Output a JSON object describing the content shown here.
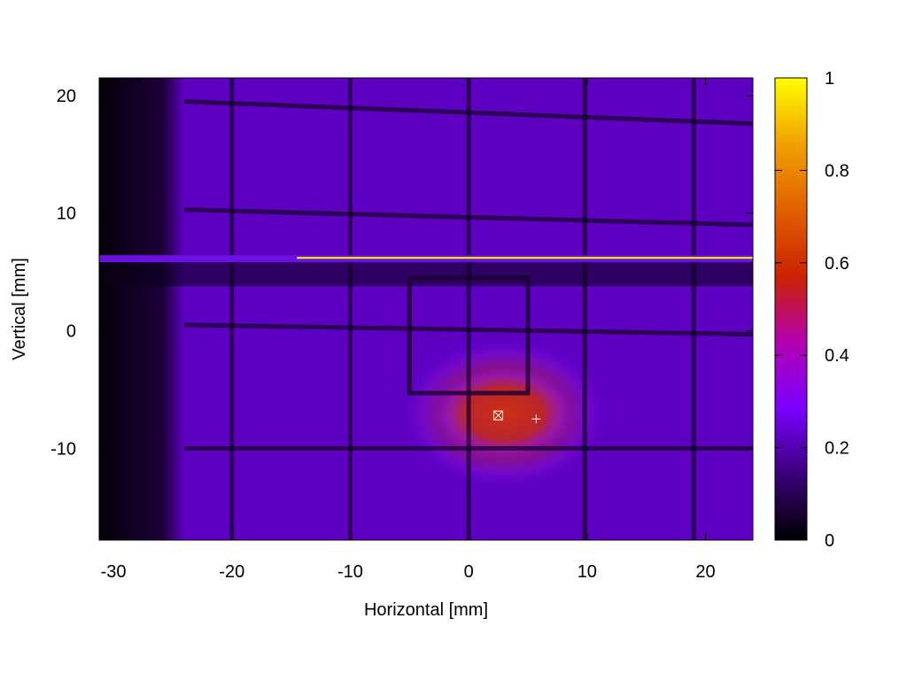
{
  "chart_data": {
    "type": "heatmap",
    "title": "",
    "xlabel": "Horizontal [mm]",
    "ylabel": "Vertical [mm]",
    "xlim": [
      -31.2,
      24
    ],
    "ylim": [
      -17.8,
      21.5
    ],
    "x_ticks": [
      -30,
      -20,
      -10,
      0,
      10,
      20
    ],
    "y_ticks": [
      -10,
      0,
      10,
      20
    ],
    "x_tick_labels": [
      "-30",
      "-20",
      "-10",
      "0",
      "10",
      "20"
    ],
    "y_tick_labels": [
      "-10",
      "0",
      "10",
      "20"
    ],
    "colorbar": {
      "range": [
        0,
        1
      ],
      "ticks": [
        0,
        0.2,
        0.4,
        0.6,
        0.8,
        1
      ],
      "tick_labels": [
        "0",
        "0.2",
        "0.4",
        "0.6",
        "0.8",
        "1"
      ],
      "colors": [
        "#000000",
        "#3a0078",
        "#7a00ff",
        "#b400b0",
        "#cc2200",
        "#e06000",
        "#f2a000",
        "#ffff00"
      ]
    },
    "background_level": 0.22,
    "grid_lines_vertical_mm": [
      -20,
      -10,
      0,
      9.8,
      19
    ],
    "grid_lines_horizontal_mm": [
      {
        "x0": -24,
        "y0": 19.5,
        "x1": 24,
        "y1": 17.6
      },
      {
        "x0": -24,
        "y0": 10.3,
        "x1": 24,
        "y1": 9
      },
      {
        "x0": -24,
        "y0": 0.5,
        "x1": 24,
        "y1": -0.3
      },
      {
        "x0": -24,
        "y0": -10,
        "x1": 24,
        "y1": -10
      }
    ],
    "dark_left_region_mm": [
      -31.2,
      -24
    ],
    "beam_spot": {
      "center": [
        3,
        -7
      ],
      "radius_x": 6,
      "radius_y": 4,
      "peak": 0.58
    },
    "horizontal_bright_line": {
      "y": 6.2,
      "x_range": [
        -14.5,
        24
      ],
      "value": 1.0
    },
    "rectangle_outline_mm": {
      "x0": -5,
      "y0": -5.3,
      "x1": 5,
      "y1": 4.5
    },
    "markers": [
      {
        "symbol": "boxed-x",
        "x": 2.5,
        "y": -7.2
      },
      {
        "symbol": "plus",
        "x": 5.7,
        "y": -7.5
      }
    ]
  }
}
